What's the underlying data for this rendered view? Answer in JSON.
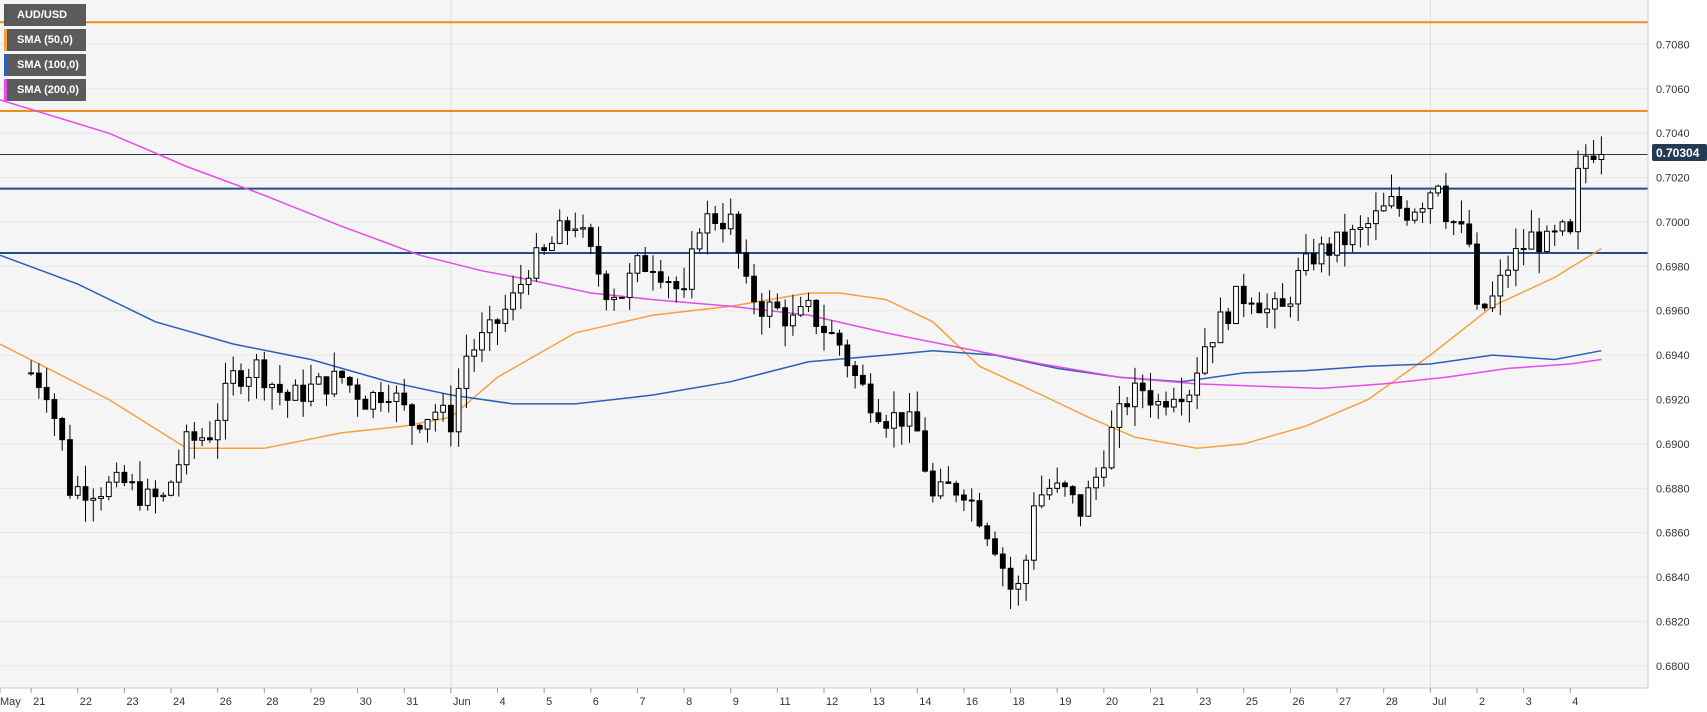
{
  "colors": {
    "plot_bg": "#f5f5f5",
    "grid": "#e6e6e6",
    "sma50": "#f5a23c",
    "sma100": "#2a60b8",
    "sma200": "#e84be8",
    "resistance": "#f08c1e",
    "support": "#1f4e8c",
    "price_line": "#243a55",
    "up_fill": "#ffffff",
    "down_fill": "#000000",
    "legend_bg": "#5b5b5b"
  },
  "legend": [
    {
      "label": "AUD/USD",
      "color": "#555555"
    },
    {
      "label": "SMA (50,0)",
      "color": "#f5a23c"
    },
    {
      "label": "SMA (100,0)",
      "color": "#2a60b8"
    },
    {
      "label": "SMA (200,0)",
      "color": "#e84be8"
    }
  ],
  "price_tag": "0.70304",
  "chart_data": {
    "type": "candlestick",
    "symbol": "AUD/USD",
    "ylim": [
      0.679,
      0.71
    ],
    "yticks": [
      "0.6800",
      "0.6820",
      "0.6840",
      "0.6860",
      "0.6880",
      "0.6900",
      "0.6920",
      "0.6940",
      "0.6960",
      "0.6980",
      "0.7000",
      "0.7020",
      "0.7040",
      "0.7060",
      "0.7080"
    ],
    "xlabels": [
      {
        "i": -4,
        "label": "May"
      },
      {
        "i": 0,
        "label": "21"
      },
      {
        "i": 6,
        "label": "22"
      },
      {
        "i": 12,
        "label": "23"
      },
      {
        "i": 18,
        "label": "24"
      },
      {
        "i": 24,
        "label": "26"
      },
      {
        "i": 30,
        "label": "28"
      },
      {
        "i": 36,
        "label": "29"
      },
      {
        "i": 42,
        "label": "30"
      },
      {
        "i": 48,
        "label": "31"
      },
      {
        "i": 54,
        "label": "Jun"
      },
      {
        "i": 60,
        "label": "4"
      },
      {
        "i": 66,
        "label": "5"
      },
      {
        "i": 72,
        "label": "6"
      },
      {
        "i": 78,
        "label": "7"
      },
      {
        "i": 84,
        "label": "8"
      },
      {
        "i": 90,
        "label": "9"
      },
      {
        "i": 96,
        "label": "11"
      },
      {
        "i": 102,
        "label": "12"
      },
      {
        "i": 108,
        "label": "13"
      },
      {
        "i": 114,
        "label": "14"
      },
      {
        "i": 120,
        "label": "16"
      },
      {
        "i": 126,
        "label": "18"
      },
      {
        "i": 132,
        "label": "19"
      },
      {
        "i": 138,
        "label": "20"
      },
      {
        "i": 144,
        "label": "21"
      },
      {
        "i": 150,
        "label": "23"
      },
      {
        "i": 156,
        "label": "25"
      },
      {
        "i": 162,
        "label": "26"
      },
      {
        "i": 168,
        "label": "27"
      },
      {
        "i": 174,
        "label": "28"
      },
      {
        "i": 180,
        "label": "Jul"
      },
      {
        "i": 186,
        "label": "2"
      },
      {
        "i": 192,
        "label": "3"
      },
      {
        "i": 198,
        "label": "4"
      }
    ],
    "hlines": [
      {
        "value": 0.709,
        "kind": "resistance"
      },
      {
        "value": 0.705,
        "kind": "resistance"
      },
      {
        "value": 0.70304,
        "kind": "price"
      },
      {
        "value": 0.7015,
        "kind": "support"
      },
      {
        "value": 0.6986,
        "kind": "support"
      }
    ],
    "anchors": [
      [
        0,
        0.6932
      ],
      [
        2,
        0.6925
      ],
      [
        4,
        0.69
      ],
      [
        5,
        0.688
      ],
      [
        9,
        0.688
      ],
      [
        12,
        0.6882
      ],
      [
        15,
        0.6875
      ],
      [
        17,
        0.6875
      ],
      [
        20,
        0.69
      ],
      [
        23,
        0.6905
      ],
      [
        26,
        0.693
      ],
      [
        29,
        0.6935
      ],
      [
        33,
        0.692
      ],
      [
        36,
        0.6925
      ],
      [
        40,
        0.693
      ],
      [
        43,
        0.692
      ],
      [
        46,
        0.6925
      ],
      [
        49,
        0.691
      ],
      [
        52,
        0.6915
      ],
      [
        54,
        0.691
      ],
      [
        56,
        0.694
      ],
      [
        59,
        0.695
      ],
      [
        62,
        0.6965
      ],
      [
        64,
        0.698
      ],
      [
        66,
        0.6985
      ],
      [
        68,
        0.6995
      ],
      [
        70,
        0.7
      ],
      [
        72,
        0.6985
      ],
      [
        74,
        0.697
      ],
      [
        76,
        0.6968
      ],
      [
        78,
        0.698
      ],
      [
        80,
        0.6982
      ],
      [
        82,
        0.6975
      ],
      [
        84,
        0.6965
      ],
      [
        86,
        0.7
      ],
      [
        88,
        0.7002
      ],
      [
        90,
        0.7
      ],
      [
        92,
        0.697
      ],
      [
        94,
        0.6962
      ],
      [
        96,
        0.696
      ],
      [
        98,
        0.6955
      ],
      [
        100,
        0.696
      ],
      [
        102,
        0.6952
      ],
      [
        104,
        0.6945
      ],
      [
        106,
        0.693
      ],
      [
        108,
        0.692
      ],
      [
        110,
        0.6912
      ],
      [
        112,
        0.6912
      ],
      [
        114,
        0.6905
      ],
      [
        116,
        0.6875
      ],
      [
        118,
        0.688
      ],
      [
        120,
        0.688
      ],
      [
        122,
        0.6868
      ],
      [
        124,
        0.6855
      ],
      [
        126,
        0.6835
      ],
      [
        127,
        0.6835
      ],
      [
        128,
        0.6848
      ],
      [
        129,
        0.6875
      ],
      [
        131,
        0.688
      ],
      [
        133,
        0.6878
      ],
      [
        135,
        0.687
      ],
      [
        137,
        0.6885
      ],
      [
        139,
        0.6905
      ],
      [
        141,
        0.692
      ],
      [
        143,
        0.6925
      ],
      [
        145,
        0.6918
      ],
      [
        147,
        0.6925
      ],
      [
        149,
        0.6925
      ],
      [
        151,
        0.6945
      ],
      [
        153,
        0.6955
      ],
      [
        155,
        0.6965
      ],
      [
        157,
        0.6968
      ],
      [
        159,
        0.696
      ],
      [
        161,
        0.696
      ],
      [
        163,
        0.6975
      ],
      [
        165,
        0.6985
      ],
      [
        167,
        0.6988
      ],
      [
        169,
        0.6992
      ],
      [
        171,
        0.6995
      ],
      [
        173,
        0.7002
      ],
      [
        175,
        0.7008
      ],
      [
        177,
        0.7005
      ],
      [
        179,
        0.701
      ],
      [
        181,
        0.702
      ],
      [
        182,
        0.7005
      ],
      [
        184,
        0.6995
      ],
      [
        185,
        0.699
      ],
      [
        186,
        0.6958
      ],
      [
        188,
        0.6965
      ],
      [
        190,
        0.698
      ],
      [
        191,
        0.6985
      ],
      [
        193,
        0.6993
      ],
      [
        195,
        0.699
      ],
      [
        197,
        0.6995
      ],
      [
        198,
        0.6992
      ],
      [
        199,
        0.702
      ],
      [
        200,
        0.703
      ],
      [
        201,
        0.7033
      ],
      [
        202,
        0.70304
      ]
    ],
    "sma50": [
      [
        -4,
        0.6945
      ],
      [
        10,
        0.692
      ],
      [
        20,
        0.6898
      ],
      [
        30,
        0.6898
      ],
      [
        40,
        0.6905
      ],
      [
        48,
        0.6908
      ],
      [
        54,
        0.6912
      ],
      [
        60,
        0.693
      ],
      [
        70,
        0.695
      ],
      [
        80,
        0.6958
      ],
      [
        90,
        0.6962
      ],
      [
        100,
        0.6968
      ],
      [
        104,
        0.6968
      ],
      [
        110,
        0.6965
      ],
      [
        116,
        0.6955
      ],
      [
        122,
        0.6935
      ],
      [
        130,
        0.6922
      ],
      [
        136,
        0.6912
      ],
      [
        142,
        0.6903
      ],
      [
        150,
        0.6898
      ],
      [
        156,
        0.69
      ],
      [
        164,
        0.6908
      ],
      [
        172,
        0.692
      ],
      [
        180,
        0.694
      ],
      [
        188,
        0.6962
      ],
      [
        196,
        0.6975
      ],
      [
        202,
        0.6988
      ]
    ],
    "sma100": [
      [
        -4,
        0.6985
      ],
      [
        6,
        0.6972
      ],
      [
        16,
        0.6955
      ],
      [
        26,
        0.6945
      ],
      [
        36,
        0.6938
      ],
      [
        46,
        0.6928
      ],
      [
        54,
        0.6922
      ],
      [
        62,
        0.6918
      ],
      [
        70,
        0.6918
      ],
      [
        80,
        0.6922
      ],
      [
        90,
        0.6928
      ],
      [
        100,
        0.6937
      ],
      [
        110,
        0.694
      ],
      [
        116,
        0.6942
      ],
      [
        124,
        0.694
      ],
      [
        132,
        0.6934
      ],
      [
        140,
        0.693
      ],
      [
        148,
        0.6928
      ],
      [
        156,
        0.6932
      ],
      [
        164,
        0.6933
      ],
      [
        172,
        0.6935
      ],
      [
        180,
        0.6936
      ],
      [
        188,
        0.694
      ],
      [
        196,
        0.6938
      ],
      [
        202,
        0.6942
      ]
    ],
    "sma200": [
      [
        -4,
        0.7055
      ],
      [
        10,
        0.704
      ],
      [
        20,
        0.7025
      ],
      [
        30,
        0.7012
      ],
      [
        40,
        0.6998
      ],
      [
        50,
        0.6985
      ],
      [
        58,
        0.6978
      ],
      [
        64,
        0.6974
      ],
      [
        72,
        0.6968
      ],
      [
        80,
        0.6965
      ],
      [
        90,
        0.6962
      ],
      [
        100,
        0.6958
      ],
      [
        110,
        0.695
      ],
      [
        120,
        0.6943
      ],
      [
        130,
        0.6936
      ],
      [
        140,
        0.693
      ],
      [
        150,
        0.6927
      ],
      [
        158,
        0.6926
      ],
      [
        166,
        0.6925
      ],
      [
        174,
        0.6927
      ],
      [
        182,
        0.693
      ],
      [
        190,
        0.6934
      ],
      [
        198,
        0.6936
      ],
      [
        202,
        0.6938
      ]
    ]
  }
}
